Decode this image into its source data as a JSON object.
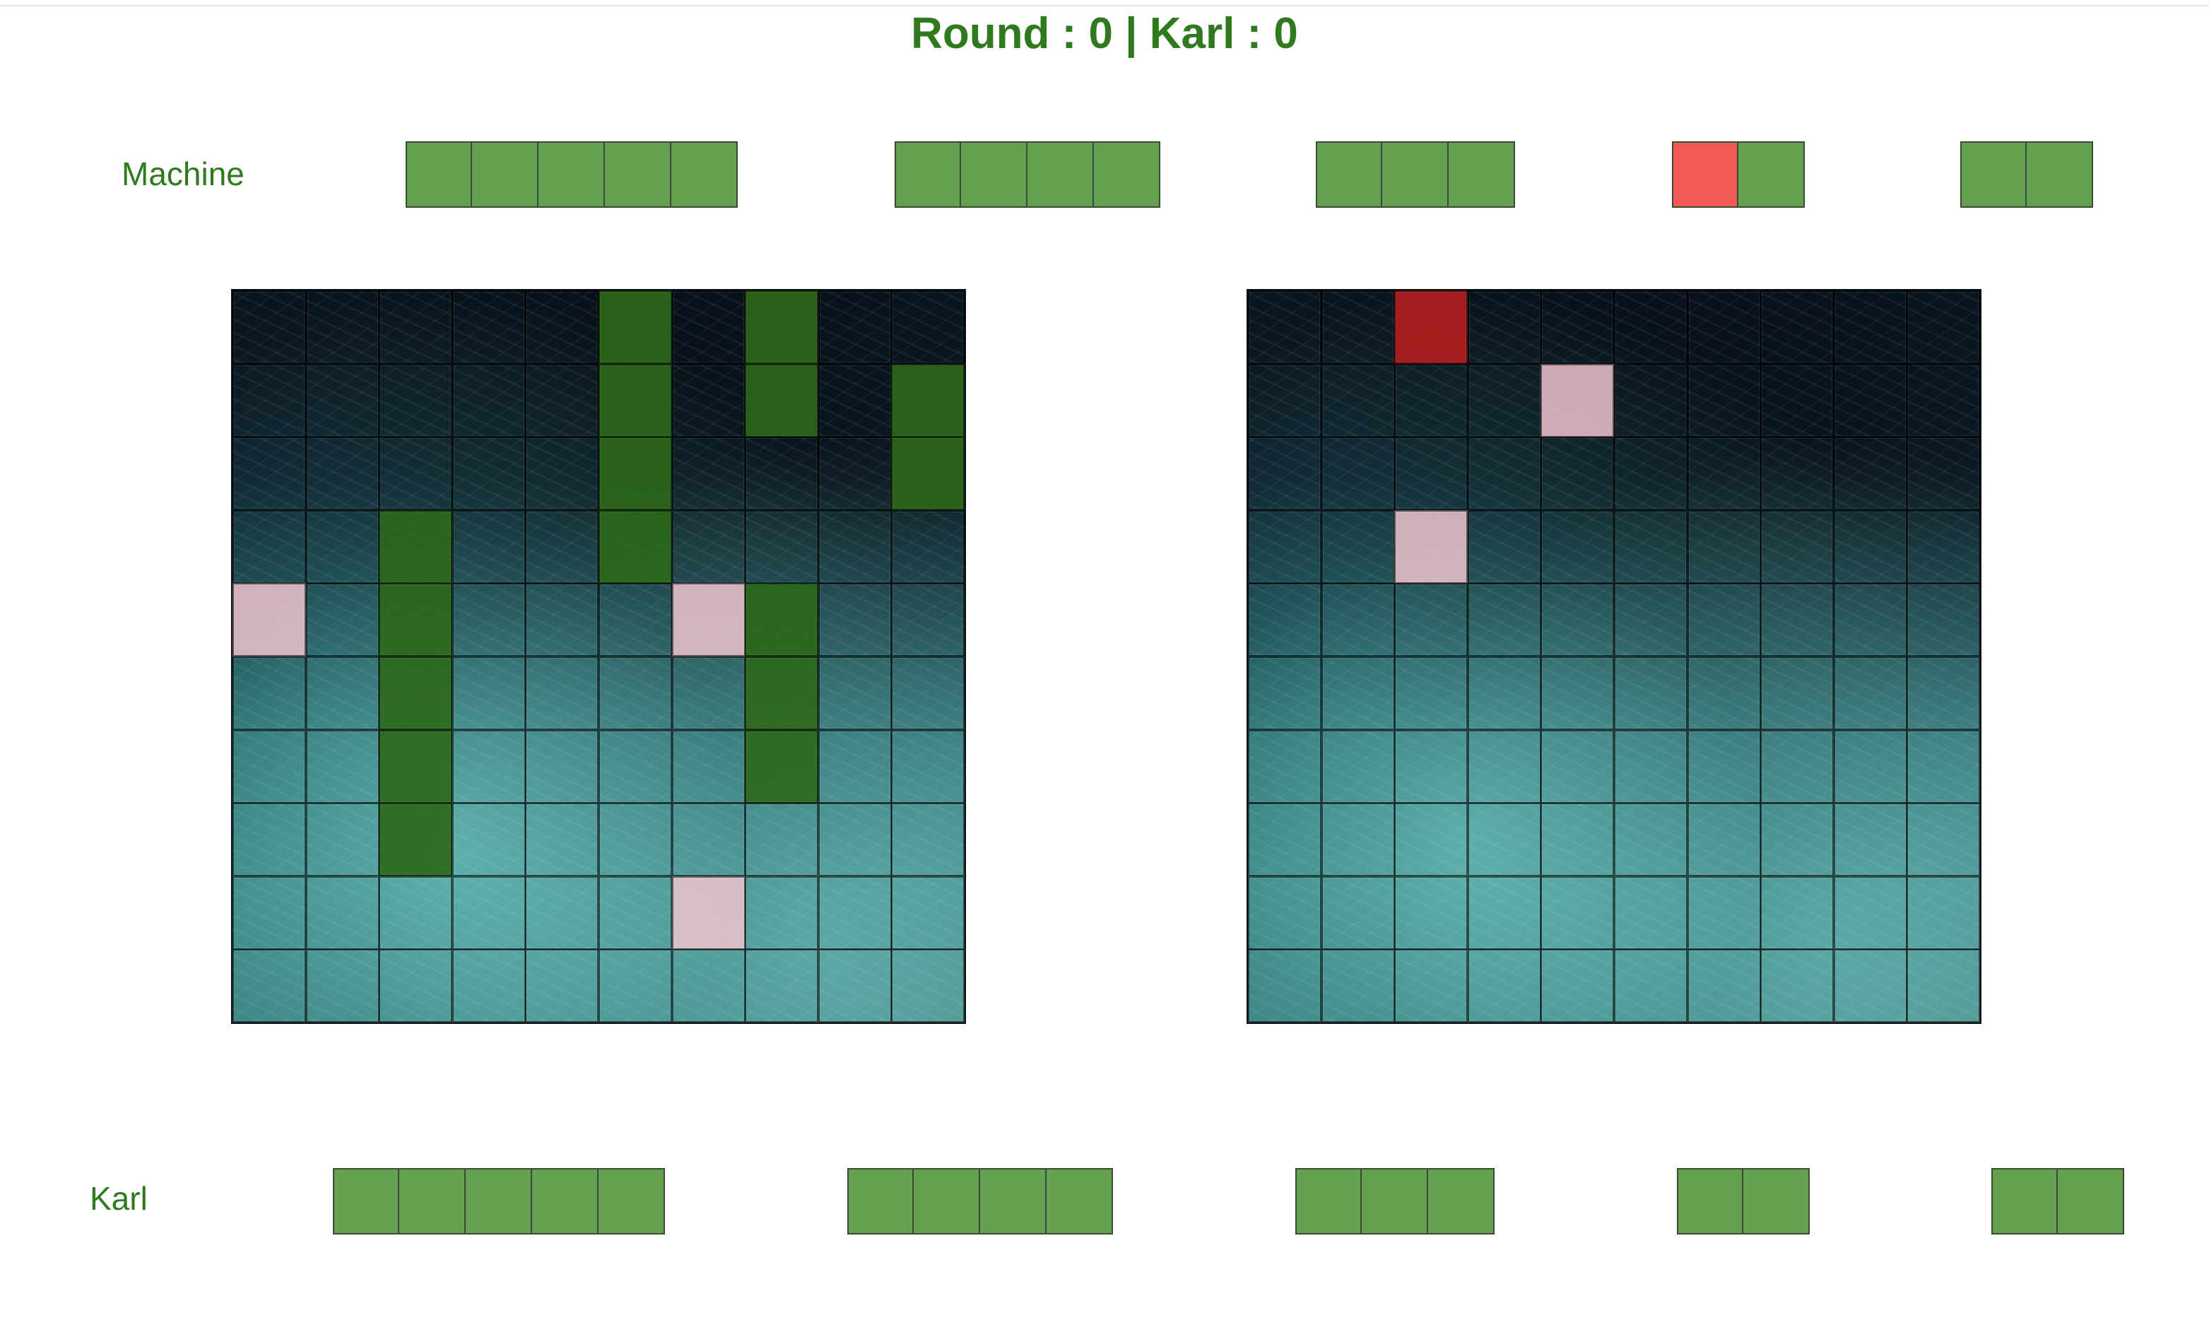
{
  "game": {
    "title": "Round : 0 | Karl : 0",
    "grid_size": 10
  },
  "machine": {
    "label": "Machine",
    "fleet": [
      {
        "length": 5,
        "hits": []
      },
      {
        "length": 4,
        "hits": []
      },
      {
        "length": 3,
        "hits": []
      },
      {
        "length": 2,
        "hits": [
          0
        ]
      },
      {
        "length": 2,
        "hits": []
      }
    ]
  },
  "karl": {
    "label": "Karl",
    "fleet": [
      {
        "length": 5,
        "hits": []
      },
      {
        "length": 4,
        "hits": []
      },
      {
        "length": 3,
        "hits": []
      },
      {
        "length": 2,
        "hits": []
      },
      {
        "length": 2,
        "hits": []
      }
    ]
  },
  "boards": {
    "own_board": {
      "ship_cells": [
        [
          0,
          5
        ],
        [
          1,
          5
        ],
        [
          2,
          5
        ],
        [
          3,
          5
        ],
        [
          0,
          7
        ],
        [
          1,
          7
        ],
        [
          1,
          9
        ],
        [
          2,
          9
        ],
        [
          3,
          2
        ],
        [
          4,
          2
        ],
        [
          5,
          2
        ],
        [
          6,
          2
        ],
        [
          7,
          2
        ],
        [
          4,
          7
        ],
        [
          5,
          7
        ],
        [
          6,
          7
        ]
      ],
      "miss_cells": [
        [
          4,
          0
        ],
        [
          4,
          6
        ],
        [
          8,
          6
        ]
      ],
      "hit_cells": []
    },
    "target_board": {
      "ship_cells": [],
      "miss_cells": [
        [
          1,
          4
        ],
        [
          3,
          2
        ]
      ],
      "hit_cells": [
        [
          0,
          2
        ]
      ]
    }
  },
  "colors": {
    "text_green": "#2f7a1e",
    "fleet_segment": "#64a050",
    "fleet_segment_hit": "#f05a52",
    "ship_cell": "#2c681a",
    "miss_cell": "#eec4ce",
    "hit_cell": "#b21e1e"
  }
}
